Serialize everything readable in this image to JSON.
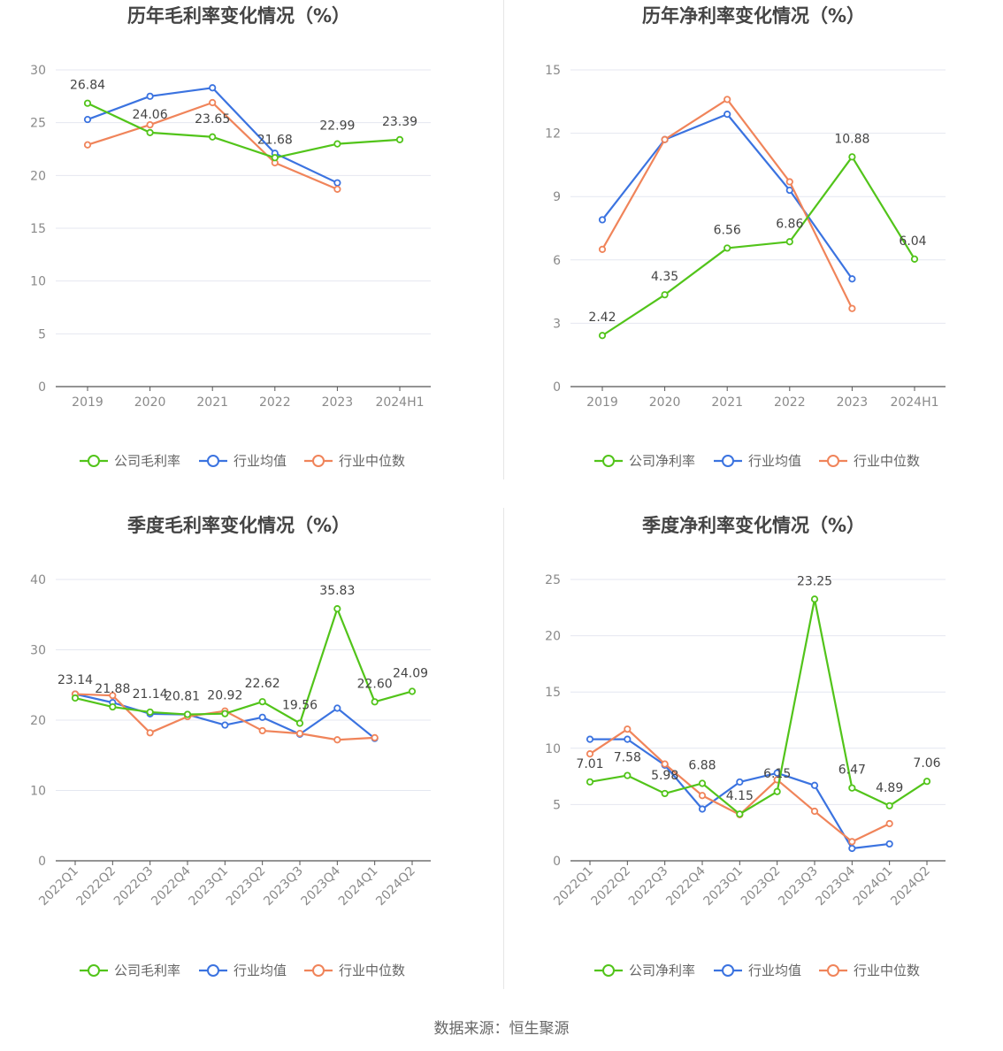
{
  "footer": "数据来源：恒生聚源",
  "colors": {
    "company": "#52c41a",
    "avg": "#3b73e0",
    "median": "#f0845a",
    "grid": "#e4e7f0",
    "axis": "#555555"
  },
  "legend": {
    "avg": "行业均值",
    "median": "行业中位数"
  },
  "chart_data": [
    {
      "type": "line",
      "title": "历年毛利率变化情况（%）",
      "categories": [
        "2019",
        "2020",
        "2021",
        "2022",
        "2023",
        "2024H1"
      ],
      "ylim": [
        0,
        30
      ],
      "yticks": [
        0,
        5,
        10,
        15,
        20,
        25,
        30
      ],
      "grid": true,
      "legend_position": "bottom",
      "series": [
        {
          "name": "公司毛利率",
          "key": "company",
          "values": [
            26.84,
            24.06,
            23.65,
            21.68,
            22.99,
            23.39
          ],
          "labels": [
            "26.84",
            "24.06",
            "23.65",
            "21.68",
            "22.99",
            "23.39"
          ]
        },
        {
          "name": "行业均值",
          "key": "avg",
          "values": [
            25.3,
            27.5,
            28.3,
            22.1,
            19.3,
            null
          ]
        },
        {
          "name": "行业中位数",
          "key": "median",
          "values": [
            22.9,
            24.8,
            26.9,
            21.2,
            18.7,
            null
          ]
        }
      ]
    },
    {
      "type": "line",
      "title": "历年净利率变化情况（%）",
      "categories": [
        "2019",
        "2020",
        "2021",
        "2022",
        "2023",
        "2024H1"
      ],
      "ylim": [
        0,
        15
      ],
      "yticks": [
        0,
        3,
        6,
        9,
        12,
        15
      ],
      "grid": true,
      "legend_position": "bottom",
      "series": [
        {
          "name": "公司净利率",
          "key": "company",
          "values": [
            2.42,
            4.35,
            6.56,
            6.86,
            10.88,
            6.04
          ],
          "labels": [
            "2.42",
            "4.35",
            "6.56",
            "6.86",
            "10.88",
            "6.04"
          ]
        },
        {
          "name": "行业均值",
          "key": "avg",
          "values": [
            7.9,
            11.7,
            12.9,
            9.3,
            5.1,
            null
          ]
        },
        {
          "name": "行业中位数",
          "key": "median",
          "values": [
            6.5,
            11.7,
            13.6,
            9.7,
            3.7,
            null
          ]
        }
      ]
    },
    {
      "type": "line",
      "title": "季度毛利率变化情况（%）",
      "categories": [
        "2022Q1",
        "2022Q2",
        "2022Q3",
        "2022Q4",
        "2023Q1",
        "2023Q2",
        "2023Q3",
        "2023Q4",
        "2024Q1",
        "2024Q2"
      ],
      "ylim": [
        0,
        40
      ],
      "yticks": [
        0,
        10,
        20,
        30,
        40
      ],
      "grid": true,
      "legend_position": "bottom",
      "series": [
        {
          "name": "公司毛利率",
          "key": "company",
          "values": [
            23.14,
            21.88,
            21.14,
            20.81,
            20.92,
            22.62,
            19.56,
            35.83,
            22.6,
            24.09
          ],
          "labels": [
            "23.14",
            "21.88",
            "21.14",
            "20.81",
            "20.92",
            "22.62",
            "19.56",
            "35.83",
            "22.60",
            "24.09"
          ]
        },
        {
          "name": "行业均值",
          "key": "avg",
          "values": [
            23.7,
            22.5,
            20.9,
            20.8,
            19.3,
            20.4,
            18.0,
            21.7,
            17.4,
            null
          ]
        },
        {
          "name": "行业中位数",
          "key": "median",
          "values": [
            23.7,
            23.5,
            18.2,
            20.5,
            21.3,
            18.5,
            18.1,
            17.2,
            17.5,
            null
          ]
        }
      ]
    },
    {
      "type": "line",
      "title": "季度净利率变化情况（%）",
      "categories": [
        "2022Q1",
        "2022Q2",
        "2022Q3",
        "2022Q4",
        "2023Q1",
        "2023Q2",
        "2023Q3",
        "2023Q4",
        "2024Q1",
        "2024Q2"
      ],
      "ylim": [
        0,
        25
      ],
      "yticks": [
        0,
        5,
        10,
        15,
        20,
        25
      ],
      "grid": true,
      "legend_position": "bottom",
      "series": [
        {
          "name": "公司净利率",
          "key": "company",
          "values": [
            7.01,
            7.58,
            5.98,
            6.88,
            4.15,
            6.15,
            23.25,
            6.47,
            4.89,
            7.06
          ],
          "labels": [
            "7.01",
            "7.58",
            "5.98",
            "6.88",
            "4.15",
            "6.15",
            "23.25",
            "6.47",
            "4.89",
            "7.06"
          ]
        },
        {
          "name": "行业均值",
          "key": "avg",
          "values": [
            10.8,
            10.8,
            8.5,
            4.6,
            7.0,
            7.8,
            6.7,
            1.1,
            1.5,
            null
          ]
        },
        {
          "name": "行业中位数",
          "key": "median",
          "values": [
            9.5,
            11.7,
            8.6,
            5.8,
            4.1,
            7.2,
            4.4,
            1.7,
            3.3,
            null
          ]
        }
      ]
    }
  ]
}
